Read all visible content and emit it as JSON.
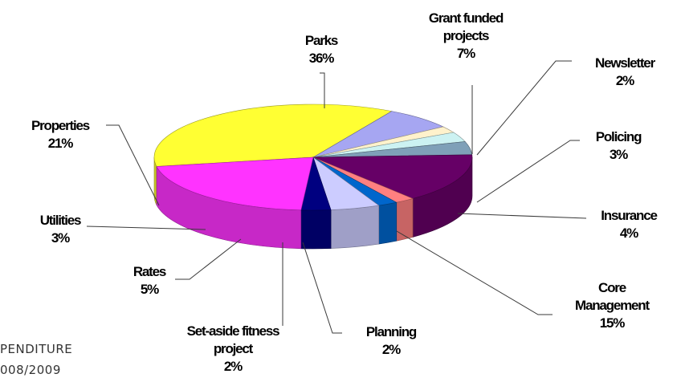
{
  "corner_text": {
    "line1": "PENDITURE",
    "line2": "008/2009"
  },
  "chart_data": {
    "type": "pie",
    "three_d": true,
    "legend": "none",
    "slices": [
      {
        "name": "Parks",
        "label_lines": [
          "Parks"
        ],
        "value": 36,
        "pct_label": "36%",
        "color": "#ffff33"
      },
      {
        "name": "Grant funded projects",
        "label_lines": [
          "Grant funded",
          "projects"
        ],
        "value": 7,
        "pct_label": "7%",
        "color": "#a6a6f2"
      },
      {
        "name": "Newsletter",
        "label_lines": [
          "Newsletter"
        ],
        "value": 2,
        "pct_label": "2%",
        "color": "#fff2cc"
      },
      {
        "name": "Policing",
        "label_lines": [
          "Policing"
        ],
        "value": 3,
        "pct_label": "3%",
        "color": "#ccf2f2"
      },
      {
        "name": "Insurance",
        "label_lines": [
          "Insurance"
        ],
        "value": 4,
        "pct_label": "4%",
        "color": "#7fa0b8"
      },
      {
        "name": "Core Management",
        "label_lines": [
          "Core",
          "Management"
        ],
        "value": 15,
        "pct_label": "15%",
        "color": "#660066"
      },
      {
        "name": "Planning",
        "label_lines": [
          "Planning"
        ],
        "value": 2,
        "pct_label": "2%",
        "color": "#ff8080"
      },
      {
        "name": "Set-aside fitness project",
        "label_lines": [
          "Set-aside fitness",
          "project"
        ],
        "value": 2,
        "pct_label": "2%",
        "color": "#0066cc"
      },
      {
        "name": "Rates",
        "label_lines": [
          "Rates"
        ],
        "value": 5,
        "pct_label": "5%",
        "color": "#ccccff"
      },
      {
        "name": "Utilities",
        "label_lines": [
          "Utilities"
        ],
        "value": 3,
        "pct_label": "3%",
        "color": "#000080"
      },
      {
        "name": "Properties",
        "label_lines": [
          "Properties"
        ],
        "value": 21,
        "pct_label": "21%",
        "color": "#ff33ff"
      }
    ]
  }
}
